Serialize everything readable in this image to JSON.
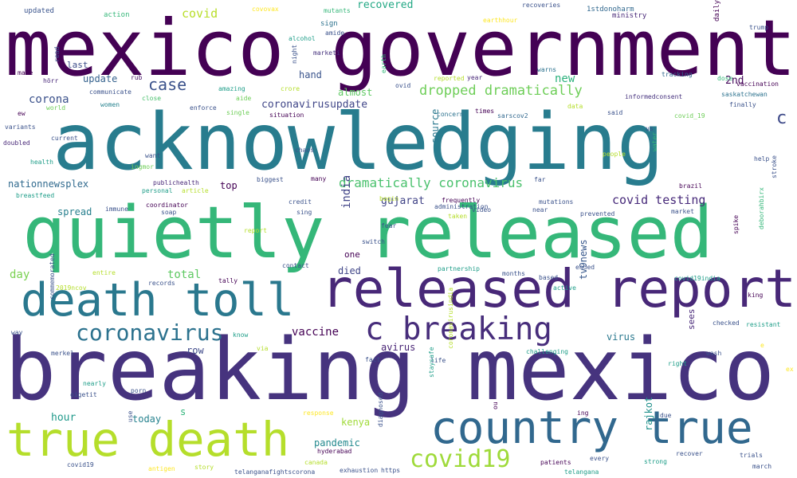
{
  "title": "",
  "palette": [
    "#440154",
    "#482878",
    "#3e4989",
    "#31688e",
    "#26828e",
    "#1f9e89",
    "#35b779",
    "#6ece58",
    "#b5de2b",
    "#fde725"
  ],
  "words": [
    {
      "text": "mexico government",
      "color": "#440154"
    },
    {
      "text": "acknowledging",
      "color": "#287c8e"
    },
    {
      "text": "quietly released",
      "color": "#35b779"
    },
    {
      "text": "breaking mexico",
      "color": "#46337e"
    },
    {
      "text": "released report",
      "color": "#482878"
    },
    {
      "text": "death toll",
      "color": "#2a788e"
    },
    {
      "text": "true death",
      "color": "#b5de2b"
    },
    {
      "text": "country true",
      "color": "#31688e"
    },
    {
      "text": "c breaking",
      "color": "#472d7b"
    },
    {
      "text": "coronavirus",
      "color": "#2c728e"
    },
    {
      "text": "covid19",
      "color": "#9fda3a"
    },
    {
      "text": "dropped dramatically",
      "color": "#6ece58"
    },
    {
      "text": "dramatically coronavirus",
      "color": "#4ac16d"
    },
    {
      "text": "case",
      "color": "#3b528b"
    },
    {
      "text": "covid testing",
      "color": "#472a7a"
    },
    {
      "text": "c",
      "color": "#3e4a89"
    },
    {
      "text": "vaccine",
      "color": "#440154"
    },
    {
      "text": "corona",
      "color": "#3b518b"
    },
    {
      "text": "coronavirusupdate",
      "color": "#404688"
    },
    {
      "text": "covid",
      "color": "#b8de29"
    },
    {
      "text": "2nd",
      "color": "#46085c"
    },
    {
      "text": "update",
      "color": "#34618d"
    },
    {
      "text": "new",
      "color": "#2db27d"
    },
    {
      "text": "almost",
      "color": "#5ec962"
    },
    {
      "text": "hand",
      "color": "#3a548c"
    },
    {
      "text": "recovered",
      "color": "#22a884"
    },
    {
      "text": "last",
      "color": "#3d4e8a"
    },
    {
      "text": "india",
      "color": "#414487"
    },
    {
      "text": "gujarat",
      "color": "#414487"
    },
    {
      "text": "day",
      "color": "#7ad151"
    },
    {
      "text": "total",
      "color": "#5ec962"
    },
    {
      "text": "spread",
      "color": "#277f8e"
    },
    {
      "text": "top",
      "color": "#440154"
    },
    {
      "text": "hour",
      "color": "#1f998a"
    },
    {
      "text": "today",
      "color": "#26828e"
    },
    {
      "text": "pandemic",
      "color": "#23898e"
    },
    {
      "text": "kenya",
      "color": "#a0da39"
    },
    {
      "text": "died",
      "color": "#404688"
    },
    {
      "text": "one",
      "color": "#440154"
    },
    {
      "text": "row",
      "color": "#3e4989"
    },
    {
      "text": "avirus",
      "color": "#482475"
    },
    {
      "text": "virus",
      "color": "#2a788e"
    },
    {
      "text": "tv9news",
      "color": "#38588c"
    },
    {
      "text": "rajkot",
      "color": "#21918c"
    },
    {
      "text": "nationnewsplex",
      "color": "#306a8e"
    },
    {
      "text": "source",
      "color": "#2a788e"
    },
    {
      "text": "s",
      "color": "#31b57b"
    },
    {
      "text": "sees",
      "color": "#482878"
    },
    {
      "text": "updated",
      "color": "#3a548c"
    },
    {
      "text": "action",
      "color": "#35b779"
    },
    {
      "text": "covovax",
      "color": "#fde725"
    },
    {
      "text": "mutants",
      "color": "#35b779"
    },
    {
      "text": "recoveries",
      "color": "#3b528b"
    },
    {
      "text": "1stdonoharm",
      "color": "#31688e"
    },
    {
      "text": "earthhour",
      "color": "#fde725"
    },
    {
      "text": "ministry",
      "color": "#482878"
    },
    {
      "text": "trump",
      "color": "#3b528b"
    },
    {
      "text": "daily",
      "color": "#440154"
    },
    {
      "text": "sign",
      "color": "#2c728e"
    },
    {
      "text": "amide",
      "color": "#3b528b"
    },
    {
      "text": "alcohol",
      "color": "#1f9e89"
    },
    {
      "text": "marketi",
      "color": "#46327e"
    },
    {
      "text": "night",
      "color": "#3b528b"
    },
    {
      "text": "made",
      "color": "#440154"
    },
    {
      "text": "read",
      "color": "#3b528b"
    },
    {
      "text": "hörr",
      "color": "#482878"
    },
    {
      "text": "rub",
      "color": "#481467"
    },
    {
      "text": "communicate",
      "color": "#3b528b"
    },
    {
      "text": "women",
      "color": "#26828e"
    },
    {
      "text": "close",
      "color": "#4ac16d"
    },
    {
      "text": "aide",
      "color": "#6ece58"
    },
    {
      "text": "crore",
      "color": "#b5de2b"
    },
    {
      "text": "amazing",
      "color": "#1f9e89"
    },
    {
      "text": "enforce",
      "color": "#3b528b"
    },
    {
      "text": "single",
      "color": "#6ece58"
    },
    {
      "text": "situation",
      "color": "#440154"
    },
    {
      "text": "earth",
      "color": "#35b779"
    },
    {
      "text": "ovid",
      "color": "#3b528b"
    },
    {
      "text": "reported",
      "color": "#b5de2b"
    },
    {
      "text": "year",
      "color": "#482878"
    },
    {
      "text": "warns",
      "color": "#2c728e"
    },
    {
      "text": "tracking",
      "color": "#31688e"
    },
    {
      "text": "dose",
      "color": "#35b779"
    },
    {
      "text": "vaccination",
      "color": "#440154"
    },
    {
      "text": "informedconsent",
      "color": "#46327e"
    },
    {
      "text": "saskatchewan",
      "color": "#2c728e"
    },
    {
      "text": "finally",
      "color": "#3b528b"
    },
    {
      "text": "world",
      "color": "#6ece58"
    },
    {
      "text": "ew",
      "color": "#440154"
    },
    {
      "text": "variants",
      "color": "#3b528b"
    },
    {
      "text": "doubled",
      "color": "#482878"
    },
    {
      "text": "current",
      "color": "#3b528b"
    },
    {
      "text": "health",
      "color": "#1f9e89"
    },
    {
      "text": "concern",
      "color": "#2c728e"
    },
    {
      "text": "times",
      "color": "#440154"
    },
    {
      "text": "sarscov2",
      "color": "#31688e"
    },
    {
      "text": "said",
      "color": "#3b528b"
    },
    {
      "text": "data",
      "color": "#b5de2b"
    },
    {
      "text": "covid_19",
      "color": "#6ece58"
    },
    {
      "text": "us",
      "color": "#3b528b"
    },
    {
      "text": "chaos",
      "color": "#3b528b"
    },
    {
      "text": "want",
      "color": "#3b528b"
    },
    {
      "text": "people",
      "color": "#b5de2b"
    },
    {
      "text": "water",
      "color": "#35b779"
    },
    {
      "text": "help",
      "color": "#3b528b"
    },
    {
      "text": "ingmor",
      "color": "#6ece58"
    },
    {
      "text": "publichealth",
      "color": "#482878"
    },
    {
      "text": "biggest",
      "color": "#3b528b"
    },
    {
      "text": "many",
      "color": "#440154"
    },
    {
      "text": "personal",
      "color": "#1f9e89"
    },
    {
      "text": "article",
      "color": "#b5de2b"
    },
    {
      "text": "far",
      "color": "#3b528b"
    },
    {
      "text": "brazil",
      "color": "#440154"
    },
    {
      "text": "breastfeed",
      "color": "#1f9e89"
    },
    {
      "text": "immune",
      "color": "#3b528b"
    },
    {
      "text": "soap",
      "color": "#3b528b"
    },
    {
      "text": "coordinator",
      "color": "#440154"
    },
    {
      "text": "credit",
      "color": "#3b528b"
    },
    {
      "text": "sing",
      "color": "#3b528b"
    },
    {
      "text": "begin",
      "color": "#b5de2b"
    },
    {
      "text": "administration",
      "color": "#3b528b"
    },
    {
      "text": "frequently",
      "color": "#440154"
    },
    {
      "text": "video",
      "color": "#3b528b"
    },
    {
      "text": "taken",
      "color": "#b5de2b"
    },
    {
      "text": "mutations",
      "color": "#3b528b"
    },
    {
      "text": "near",
      "color": "#3b528b"
    },
    {
      "text": "prevented",
      "color": "#3b528b"
    },
    {
      "text": "market",
      "color": "#3b528b"
    },
    {
      "text": "stroke",
      "color": "#3b528b"
    },
    {
      "text": "report",
      "color": "#b5de2b"
    },
    {
      "text": "fear",
      "color": "#3b528b"
    },
    {
      "text": "switch",
      "color": "#3b528b"
    },
    {
      "text": "spike",
      "color": "#440154"
    },
    {
      "text": "deborahbirx",
      "color": "#35b779"
    },
    {
      "text": "contact",
      "color": "#3b528b"
    },
    {
      "text": "partnership",
      "color": "#1f9e89"
    },
    {
      "text": "months",
      "color": "#3b528b"
    },
    {
      "text": "ended",
      "color": "#3b528b"
    },
    {
      "text": "based",
      "color": "#3b528b"
    },
    {
      "text": "covid19india",
      "color": "#1f9e89"
    },
    {
      "text": "active",
      "color": "#1f9e89"
    },
    {
      "text": "king",
      "color": "#440154"
    },
    {
      "text": "2019ncov",
      "color": "#b5de2b"
    },
    {
      "text": "entire",
      "color": "#b5de2b"
    },
    {
      "text": "records",
      "color": "#3b528b"
    },
    {
      "text": "tally",
      "color": "#440154"
    },
    {
      "text": "way",
      "color": "#3b528b"
    },
    {
      "text": "commemorated",
      "color": "#3b528b"
    },
    {
      "text": "know",
      "color": "#1f9e89"
    },
    {
      "text": "via",
      "color": "#b5de2b"
    },
    {
      "text": "checked",
      "color": "#3b528b"
    },
    {
      "text": "resistant",
      "color": "#1f9e89"
    },
    {
      "text": "e",
      "color": "#fde725"
    },
    {
      "text": "merkel",
      "color": "#3b528b"
    },
    {
      "text": "challenging",
      "color": "#1f9e89"
    },
    {
      "text": "wash",
      "color": "#3b528b"
    },
    {
      "text": "fact",
      "color": "#3b528b"
    },
    {
      "text": "life",
      "color": "#3b528b"
    },
    {
      "text": "coronavirusindia",
      "color": "#b5de2b"
    },
    {
      "text": "right",
      "color": "#1f9e89"
    },
    {
      "text": "ex",
      "color": "#fde725"
    },
    {
      "text": "nearly",
      "color": "#1f9e89"
    },
    {
      "text": "porn",
      "color": "#3b528b"
    },
    {
      "text": "staysafe",
      "color": "#1f9e89"
    },
    {
      "text": "oigetit",
      "color": "#3b528b"
    },
    {
      "text": "use",
      "color": "#3b528b"
    },
    {
      "text": "response",
      "color": "#fde725"
    },
    {
      "text": "ou",
      "color": "#440154"
    },
    {
      "text": "ing",
      "color": "#440154"
    },
    {
      "text": "due",
      "color": "#3b528b"
    },
    {
      "text": "diagnosed",
      "color": "#3b528b"
    },
    {
      "text": "hyderabad",
      "color": "#440154"
    },
    {
      "text": "recover",
      "color": "#3b528b"
    },
    {
      "text": "patients",
      "color": "#440154"
    },
    {
      "text": "every",
      "color": "#3b528b"
    },
    {
      "text": "strong",
      "color": "#1f9e89"
    },
    {
      "text": "trials",
      "color": "#3b528b"
    },
    {
      "text": "covid19",
      "color": "#3b528b"
    },
    {
      "text": "antigen",
      "color": "#fde725"
    },
    {
      "text": "story",
      "color": "#b5de2b"
    },
    {
      "text": "canada",
      "color": "#b5de2b"
    },
    {
      "text": "telanganafightscorona",
      "color": "#3b528b"
    },
    {
      "text": "exhaustion",
      "color": "#3b528b"
    },
    {
      "text": "https",
      "color": "#3b528b"
    },
    {
      "text": "telangana",
      "color": "#1f9e89"
    },
    {
      "text": "march",
      "color": "#3b528b"
    }
  ]
}
